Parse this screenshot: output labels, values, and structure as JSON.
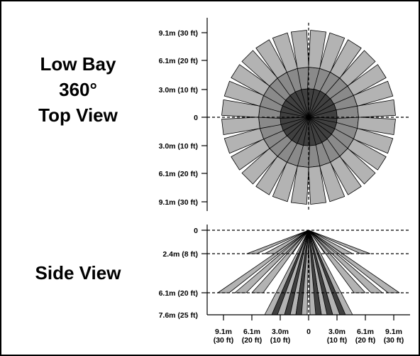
{
  "top_view": {
    "title_lines": [
      "Low Bay",
      "360°",
      "Top View"
    ],
    "y_labels": [
      "9.1m (30 ft)",
      "6.1m (20 ft)",
      "3.0m (10 ft)",
      "0",
      "3.0m (10 ft)",
      "6.1m (20 ft)",
      "9.1m (30 ft)"
    ]
  },
  "side_view": {
    "title": "Side View",
    "y_labels": [
      "0",
      "2.4m (8 ft)",
      "6.1m (20 ft)",
      "7.6m (25 ft)"
    ],
    "x_labels": [
      {
        "line1": "9.1m",
        "line2": "(30 ft)"
      },
      {
        "line1": "6.1m",
        "line2": "(20 ft)"
      },
      {
        "line1": "3.0m",
        "line2": "(10 ft)"
      },
      {
        "line1": "0",
        "line2": ""
      },
      {
        "line1": "3.0m",
        "line2": "(10 ft)"
      },
      {
        "line1": "6.1m",
        "line2": "(20 ft)"
      },
      {
        "line1": "9.1m",
        "line2": "(30 ft)"
      }
    ]
  },
  "colors": {
    "zone_light": "#b3b3b3",
    "zone_mid": "#8a8a8a",
    "zone_dark": "#404040",
    "line": "#000000"
  }
}
